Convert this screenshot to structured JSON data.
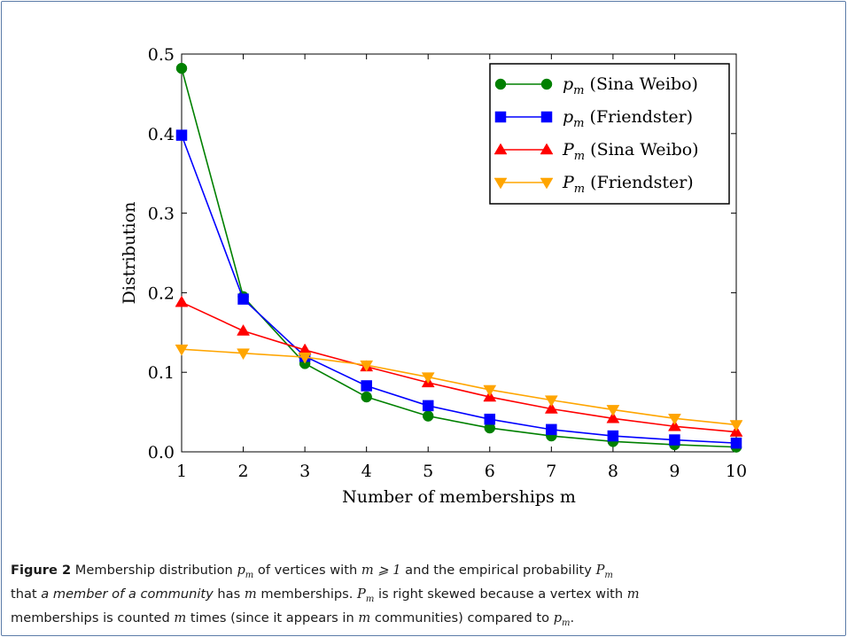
{
  "chart_data": {
    "type": "line",
    "xlabel": "Number of memberships m",
    "ylabel": "Distribution",
    "xlim": [
      1,
      10
    ],
    "ylim": [
      0,
      0.5
    ],
    "xticks": [
      "1",
      "2",
      "3",
      "4",
      "5",
      "6",
      "7",
      "8",
      "9",
      "10"
    ],
    "yticks": [
      "0.0",
      "0.1",
      "0.2",
      "0.3",
      "0.4",
      "0.5"
    ],
    "grid": false,
    "legend_position": "top-right",
    "x": [
      1,
      2,
      3,
      4,
      5,
      6,
      7,
      8,
      9,
      10
    ],
    "series": [
      {
        "name": "p_m (Sina Weibo)",
        "legend_symbol": "p",
        "legend_sub": "m",
        "legend_rest": "(Sina Weibo)",
        "color": "#008000",
        "marker": "circle",
        "values": [
          0.482,
          0.195,
          0.111,
          0.069,
          0.045,
          0.03,
          0.02,
          0.013,
          0.009,
          0.006
        ]
      },
      {
        "name": "p_m (Friendster)",
        "legend_symbol": "p",
        "legend_sub": "m",
        "legend_rest": "(Friendster)",
        "color": "#0000ff",
        "marker": "square",
        "values": [
          0.398,
          0.192,
          0.12,
          0.083,
          0.058,
          0.041,
          0.028,
          0.02,
          0.015,
          0.011
        ]
      },
      {
        "name": "P_m (Sina Weibo)",
        "legend_symbol": "P",
        "legend_sub": "m",
        "legend_rest": "(Sina Weibo)",
        "color": "#ff0000",
        "marker": "triangle-up",
        "values": [
          0.188,
          0.152,
          0.128,
          0.107,
          0.087,
          0.069,
          0.054,
          0.042,
          0.032,
          0.025
        ]
      },
      {
        "name": "P_m (Friendster)",
        "legend_symbol": "P",
        "legend_sub": "m",
        "legend_rest": "(Friendster)",
        "color": "#ffa500",
        "marker": "triangle-down",
        "values": [
          0.129,
          0.124,
          0.119,
          0.109,
          0.094,
          0.078,
          0.065,
          0.053,
          0.042,
          0.034
        ]
      }
    ]
  },
  "caption": {
    "label": "Figure 2",
    "line1_a": "Membership distribution",
    "line1_pm": "p",
    "line1_pm_sub": "m",
    "line1_b": "of vertices with",
    "line1_cond": "m ⩾ 1",
    "line1_c": "and the empirical probability",
    "line1_Pm": "P",
    "line1_Pm_sub": "m",
    "line2_a": "that",
    "line2_emph": "a member of a community",
    "line2_b": "has",
    "line2_m1": "m",
    "line2_c": "memberships.",
    "line2_Pm": "P",
    "line2_Pm_sub": "m",
    "line2_d": "is right skewed because a vertex with",
    "line2_m2": "m",
    "line3_a": "memberships is counted",
    "line3_m1": "m",
    "line3_b": "times (since it appears in",
    "line3_m2": "m",
    "line3_c": "communities) compared to",
    "line3_pm": "p",
    "line3_pm_sub": "m",
    "line3_end": "."
  }
}
